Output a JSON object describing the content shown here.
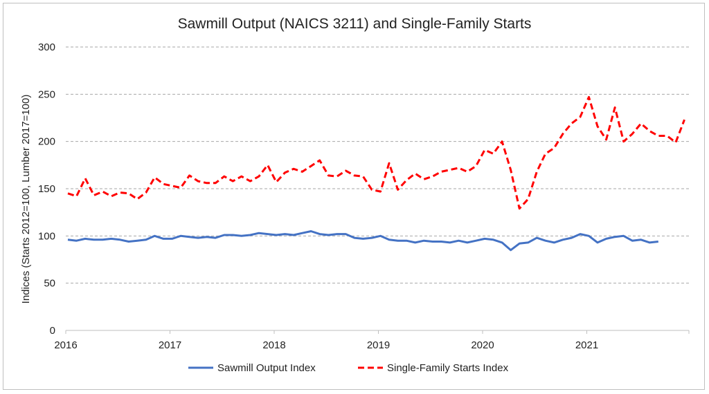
{
  "chart_data": {
    "type": "line",
    "title": "Sawmill Output (NAICS 3211) and Single-Family Starts",
    "xlabel": "",
    "ylabel": "Indices (Starts 2012=100, Lumber 2017=100)",
    "ylim": [
      0,
      300
    ],
    "yticks": [
      0,
      50,
      100,
      150,
      200,
      250,
      300
    ],
    "xlim": [
      2016,
      2022
    ],
    "xticks": [
      "2016",
      "2017",
      "2018",
      "2019",
      "2020",
      "2021"
    ],
    "grid": "horizontal dashed",
    "legend_position": "bottom",
    "series": [
      {
        "name": "Sawmill Output Index",
        "color": "#4472c4",
        "style": "solid",
        "start_year": 2016,
        "values": [
          96,
          95,
          97,
          96,
          96,
          97,
          96,
          94,
          95,
          96,
          100,
          97,
          97,
          100,
          99,
          98,
          99,
          98,
          101,
          101,
          100,
          101,
          103,
          102,
          101,
          102,
          101,
          103,
          105,
          102,
          101,
          102,
          102,
          98,
          97,
          98,
          100,
          96,
          95,
          95,
          93,
          95,
          94,
          94,
          93,
          95,
          93,
          95,
          97,
          96,
          93,
          85,
          92,
          93,
          98,
          95,
          93,
          96,
          98,
          102,
          100,
          93,
          97,
          99,
          100,
          95,
          96,
          93,
          94
        ]
      },
      {
        "name": "Single-Family Starts Index",
        "color": "#ff0000",
        "style": "dashed",
        "start_year": 2016,
        "values": [
          145,
          142,
          161,
          143,
          147,
          142,
          146,
          145,
          139,
          146,
          162,
          155,
          153,
          151,
          164,
          158,
          156,
          156,
          163,
          158,
          163,
          158,
          163,
          175,
          157,
          167,
          171,
          168,
          174,
          180,
          164,
          163,
          169,
          164,
          163,
          149,
          147,
          177,
          149,
          159,
          166,
          160,
          163,
          168,
          170,
          172,
          168,
          174,
          191,
          187,
          200,
          170,
          129,
          139,
          168,
          187,
          193,
          208,
          219,
          226,
          247,
          216,
          202,
          236,
          200,
          208,
          219,
          211,
          206,
          206,
          199,
          223
        ]
      }
    ]
  }
}
